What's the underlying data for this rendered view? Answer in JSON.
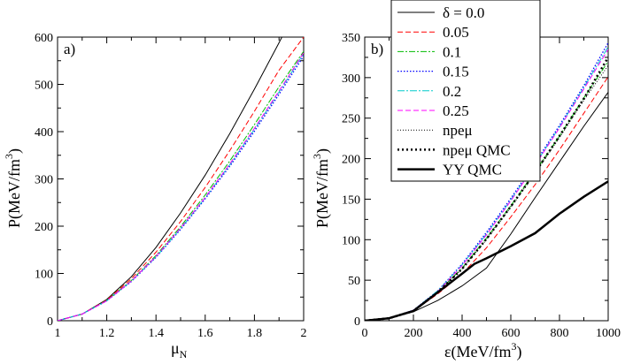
{
  "chart_data": [
    {
      "type": "line",
      "panel_label": "a)",
      "xlabel": "μ",
      "xlabel_sub": "N",
      "ylabel": "P(MeV/fm",
      "ylabel_sup": "3",
      "ylabel_end": ")",
      "xlim": [
        1,
        2
      ],
      "ylim": [
        0,
        600
      ],
      "xticks": [
        "1",
        "1.2",
        "1.4",
        "1.6",
        "1.8",
        "2"
      ],
      "yticks": [
        "0",
        "100",
        "200",
        "300",
        "400",
        "500",
        "600"
      ],
      "series": [
        {
          "legend_index": 0,
          "x": [
            1.0,
            1.1,
            1.2,
            1.3,
            1.4,
            1.5,
            1.6,
            1.7,
            1.8,
            1.9,
            1.97
          ],
          "y": [
            0,
            14,
            45,
            93,
            155,
            228,
            308,
            396,
            490,
            588,
            660
          ]
        },
        {
          "legend_index": 1,
          "x": [
            1.0,
            1.1,
            1.2,
            1.3,
            1.4,
            1.5,
            1.6,
            1.7,
            1.8,
            1.9,
            2.0
          ],
          "y": [
            0,
            14,
            44,
            89,
            145,
            210,
            282,
            360,
            443,
            530,
            600
          ]
        },
        {
          "legend_index": 2,
          "x": [
            1.0,
            1.1,
            1.2,
            1.3,
            1.4,
            1.5,
            1.6,
            1.7,
            1.8,
            1.9,
            2.0
          ],
          "y": [
            0,
            14,
            43,
            85,
            138,
            199,
            266,
            338,
            415,
            495,
            570
          ]
        },
        {
          "legend_index": 3,
          "x": [
            1.0,
            1.1,
            1.2,
            1.3,
            1.4,
            1.5,
            1.6,
            1.7,
            1.8,
            1.9,
            2.0
          ],
          "y": [
            0,
            14,
            42,
            83,
            134,
            193,
            258,
            327,
            401,
            479,
            560
          ]
        },
        {
          "legend_index": 4,
          "x": [
            1.0,
            1.1,
            1.2,
            1.3,
            1.4,
            1.5,
            1.6,
            1.7,
            1.8,
            1.9,
            2.0
          ],
          "y": [
            0,
            14,
            42,
            84,
            135,
            195,
            260,
            330,
            405,
            484,
            565
          ]
        },
        {
          "legend_index": 5,
          "x": [
            1.0,
            1.1,
            1.2,
            1.3,
            1.4,
            1.5,
            1.6,
            1.7,
            1.8,
            1.9,
            2.0
          ],
          "y": [
            0,
            14,
            42,
            84,
            136,
            196,
            261,
            332,
            407,
            486,
            567
          ]
        }
      ]
    },
    {
      "type": "line",
      "panel_label": "b)",
      "xlabel": "ε(MeV/fm",
      "xlabel_sup": "3",
      "xlabel_end": ")",
      "ylabel": "P(MeV/fm",
      "ylabel_sup": "3",
      "ylabel_end": ")",
      "xlim": [
        0,
        1000
      ],
      "ylim": [
        0,
        350
      ],
      "xticks": [
        "0",
        "200",
        "400",
        "600",
        "800",
        "1000"
      ],
      "yticks": [
        "0",
        "50",
        "100",
        "150",
        "200",
        "250",
        "300",
        "350"
      ],
      "legend": [
        {
          "label": "δ = 0.0",
          "color": "#000000",
          "dash": "",
          "width": 1
        },
        {
          "label": "0.05",
          "color": "#ff0000",
          "dash": "6,3",
          "width": 1
        },
        {
          "label": "0.1",
          "color": "#00bb00",
          "dash": "7,2,2,2",
          "width": 1
        },
        {
          "label": "0.15",
          "color": "#0000ff",
          "dash": "1.5,2",
          "width": 1.3
        },
        {
          "label": "0.2",
          "color": "#00cccc",
          "dash": "8,2,2,2",
          "width": 1
        },
        {
          "label": "0.25",
          "color": "#ff00ff",
          "dash": "6,3",
          "width": 1
        },
        {
          "label": "npeμ",
          "color": "#000000",
          "dash": "1,2",
          "width": 1
        },
        {
          "label": "npeμ QMC",
          "color": "#000000",
          "dash": "2,3",
          "width": 2.5
        },
        {
          "label": "YY QMC",
          "color": "#000000",
          "dash": "",
          "width": 2.5
        }
      ],
      "legend_position": "top-center",
      "series": [
        {
          "legend_index": 0,
          "x": [
            0,
            100,
            200,
            300,
            400,
            500,
            600,
            700,
            800,
            900,
            1000
          ],
          "y": [
            0,
            3,
            11,
            25,
            43,
            65,
            107,
            152,
            196,
            240,
            282
          ]
        },
        {
          "legend_index": 1,
          "x": [
            0,
            100,
            200,
            300,
            400,
            500,
            600,
            700,
            800,
            900,
            1000
          ],
          "y": [
            0,
            3,
            12,
            33,
            58,
            90,
            128,
            168,
            211,
            256,
            301
          ]
        },
        {
          "legend_index": 2,
          "x": [
            0,
            100,
            200,
            300,
            400,
            500,
            600,
            700,
            800,
            900,
            1000
          ],
          "y": [
            0,
            3,
            12,
            35,
            65,
            102,
            142,
            184,
            228,
            275,
            320
          ]
        },
        {
          "legend_index": 3,
          "x": [
            0,
            100,
            200,
            300,
            400,
            500,
            600,
            700,
            800,
            900,
            1000
          ],
          "y": [
            0,
            3,
            13,
            37,
            70,
            109,
            151,
            195,
            241,
            290,
            343
          ]
        },
        {
          "legend_index": 4,
          "x": [
            0,
            100,
            200,
            300,
            400,
            500,
            600,
            700,
            800,
            900,
            1000
          ],
          "y": [
            0,
            3,
            13,
            37,
            69,
            107,
            149,
            193,
            239,
            288,
            338
          ]
        },
        {
          "legend_index": 5,
          "x": [
            0,
            100,
            200,
            300,
            400,
            500,
            600,
            700,
            800,
            900,
            1000
          ],
          "y": [
            0,
            3,
            13,
            36,
            68,
            106,
            148,
            192,
            238,
            286,
            335
          ]
        },
        {
          "legend_index": 6,
          "x": [
            0,
            100,
            200,
            300,
            400,
            500,
            600,
            700,
            800,
            900,
            1000
          ],
          "y": [
            0,
            3,
            12,
            35,
            64,
            100,
            140,
            182,
            226,
            272,
            315
          ]
        },
        {
          "legend_index": 7,
          "x": [
            0,
            100,
            200,
            300,
            400,
            500,
            600,
            700,
            800,
            900,
            1000
          ],
          "y": [
            0,
            3,
            12,
            35,
            64,
            101,
            141,
            183,
            228,
            274,
            325
          ]
        },
        {
          "legend_index": 8,
          "x": [
            0,
            100,
            200,
            300,
            400,
            450,
            500,
            600,
            700,
            800,
            900,
            1000
          ],
          "y": [
            0,
            3,
            12,
            35,
            58,
            70,
            77,
            92,
            108,
            132,
            153,
            172
          ]
        }
      ]
    }
  ]
}
